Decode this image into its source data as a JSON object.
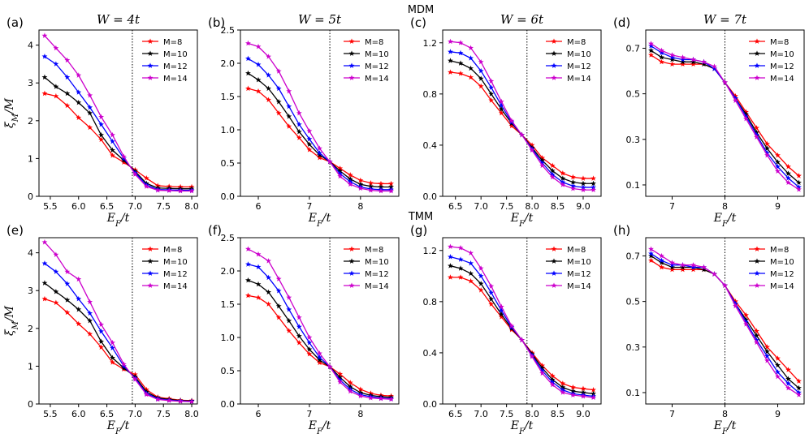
{
  "row_labels": [
    "MDM",
    "TMM"
  ],
  "colors": {
    "M=8": "#ff0000",
    "M=10": "#000000",
    "M=12": "#0000ff",
    "M=14": "#cc00cc"
  },
  "chart_data": [
    {
      "type": "line",
      "panel": "(a)",
      "row": "MDM",
      "title": "W = 4t",
      "xlabel": "E_F/t",
      "ylabel": "ξ_M/M",
      "xlim": [
        5.3,
        8.1
      ],
      "ylim": [
        0,
        4.4
      ],
      "xticks": [
        "5.5",
        "6.0",
        "6.5",
        "7.0",
        "7.5",
        "8.0"
      ],
      "yticks": [
        "0",
        "1",
        "2",
        "3",
        "4"
      ],
      "vline": 6.95,
      "legend": [
        "M=8",
        "M=10",
        "M=12",
        "M=14"
      ],
      "x": [
        5.4,
        5.6,
        5.8,
        6.0,
        6.2,
        6.4,
        6.6,
        6.8,
        7.0,
        7.2,
        7.4,
        7.6,
        7.8,
        8.0
      ],
      "series": [
        {
          "name": "M=8",
          "values": [
            2.72,
            2.65,
            2.4,
            2.08,
            1.82,
            1.5,
            1.08,
            0.9,
            0.7,
            0.48,
            0.28,
            0.26,
            0.25,
            0.25
          ]
        },
        {
          "name": "M=10",
          "values": [
            3.15,
            2.9,
            2.72,
            2.48,
            2.2,
            1.62,
            1.22,
            0.95,
            0.66,
            0.34,
            0.22,
            0.21,
            0.2,
            0.2
          ]
        },
        {
          "name": "M=12",
          "values": [
            3.7,
            3.5,
            3.15,
            2.75,
            2.35,
            1.9,
            1.45,
            1.0,
            0.62,
            0.3,
            0.18,
            0.17,
            0.16,
            0.16
          ]
        },
        {
          "name": "M=14",
          "values": [
            4.25,
            3.92,
            3.6,
            3.2,
            2.67,
            2.1,
            1.62,
            1.05,
            0.58,
            0.26,
            0.16,
            0.15,
            0.14,
            0.14
          ]
        }
      ]
    },
    {
      "type": "line",
      "panel": "(b)",
      "row": "MDM",
      "title": "W = 5t",
      "xlabel": "E_F/t",
      "ylabel": "",
      "xlim": [
        5.65,
        8.75
      ],
      "ylim": [
        0,
        2.5
      ],
      "xticks": [
        "6",
        "7",
        "8"
      ],
      "yticks": [
        "0.0",
        "0.5",
        "1.0",
        "1.5",
        "2.0",
        "2.5"
      ],
      "vline": 7.4,
      "legend": [
        "M=8",
        "M=10",
        "M=12",
        "M=14"
      ],
      "x": [
        5.8,
        6.0,
        6.2,
        6.4,
        6.6,
        6.8,
        7.0,
        7.2,
        7.4,
        7.6,
        7.8,
        8.0,
        8.2,
        8.4,
        8.6
      ],
      "series": [
        {
          "name": "M=8",
          "values": [
            1.62,
            1.58,
            1.45,
            1.25,
            1.05,
            0.88,
            0.7,
            0.58,
            0.52,
            0.42,
            0.32,
            0.24,
            0.2,
            0.19,
            0.19
          ]
        },
        {
          "name": "M=10",
          "values": [
            1.85,
            1.75,
            1.62,
            1.42,
            1.2,
            0.97,
            0.78,
            0.62,
            0.52,
            0.38,
            0.26,
            0.18,
            0.15,
            0.14,
            0.14
          ]
        },
        {
          "name": "M=12",
          "values": [
            2.07,
            1.98,
            1.82,
            1.62,
            1.35,
            1.08,
            0.86,
            0.65,
            0.52,
            0.34,
            0.22,
            0.14,
            0.11,
            0.1,
            0.1
          ]
        },
        {
          "name": "M=14",
          "values": [
            2.3,
            2.25,
            2.1,
            1.88,
            1.58,
            1.25,
            0.98,
            0.72,
            0.52,
            0.3,
            0.18,
            0.12,
            0.09,
            0.08,
            0.08
          ]
        }
      ]
    },
    {
      "type": "line",
      "panel": "(c)",
      "row": "MDM",
      "title": "W = 6t",
      "xlabel": "E_F/t",
      "ylabel": "",
      "xlim": [
        6.25,
        9.35
      ],
      "ylim": [
        0,
        1.3
      ],
      "xticks": [
        "6.5",
        "7.0",
        "7.5",
        "8.0",
        "8.5",
        "9.0"
      ],
      "yticks": [
        "0.0",
        "0.4",
        "0.8",
        "1.2"
      ],
      "vline": 7.9,
      "legend": [
        "M=8",
        "M=10",
        "M=12",
        "M=14"
      ],
      "x": [
        6.4,
        6.6,
        6.8,
        7.0,
        7.2,
        7.4,
        7.6,
        7.8,
        8.0,
        8.2,
        8.4,
        8.6,
        8.8,
        9.0,
        9.2
      ],
      "series": [
        {
          "name": "M=8",
          "values": [
            0.97,
            0.96,
            0.93,
            0.86,
            0.75,
            0.65,
            0.55,
            0.48,
            0.4,
            0.3,
            0.24,
            0.18,
            0.15,
            0.14,
            0.14
          ]
        },
        {
          "name": "M=10",
          "values": [
            1.06,
            1.04,
            1.0,
            0.92,
            0.8,
            0.68,
            0.57,
            0.48,
            0.38,
            0.28,
            0.2,
            0.14,
            0.11,
            0.1,
            0.1
          ]
        },
        {
          "name": "M=12",
          "values": [
            1.13,
            1.12,
            1.08,
            0.98,
            0.85,
            0.71,
            0.58,
            0.48,
            0.37,
            0.26,
            0.17,
            0.11,
            0.08,
            0.07,
            0.07
          ]
        },
        {
          "name": "M=14",
          "values": [
            1.21,
            1.2,
            1.16,
            1.05,
            0.9,
            0.74,
            0.59,
            0.48,
            0.36,
            0.24,
            0.15,
            0.09,
            0.06,
            0.05,
            0.05
          ]
        }
      ]
    },
    {
      "type": "line",
      "panel": "(d)",
      "row": "MDM",
      "title": "W = 7t",
      "xlabel": "E_F/t",
      "ylabel": "",
      "xlim": [
        6.5,
        9.5
      ],
      "ylim": [
        0.05,
        0.78
      ],
      "xticks": [
        "7",
        "8",
        "9"
      ],
      "yticks": [
        "0.1",
        "0.3",
        "0.5",
        "0.7"
      ],
      "vline": 8.0,
      "legend": [
        "M=8",
        "M=10",
        "M=12",
        "M=14"
      ],
      "x": [
        6.6,
        6.8,
        7.0,
        7.2,
        7.4,
        7.6,
        7.8,
        8.0,
        8.2,
        8.4,
        8.6,
        8.8,
        9.0,
        9.2,
        9.4
      ],
      "series": [
        {
          "name": "M=8",
          "values": [
            0.67,
            0.64,
            0.63,
            0.63,
            0.63,
            0.63,
            0.61,
            0.55,
            0.49,
            0.42,
            0.35,
            0.28,
            0.23,
            0.18,
            0.14
          ]
        },
        {
          "name": "M=10",
          "values": [
            0.69,
            0.66,
            0.65,
            0.64,
            0.64,
            0.63,
            0.61,
            0.55,
            0.48,
            0.41,
            0.33,
            0.26,
            0.2,
            0.15,
            0.11
          ]
        },
        {
          "name": "M=12",
          "values": [
            0.71,
            0.68,
            0.66,
            0.65,
            0.65,
            0.64,
            0.61,
            0.55,
            0.48,
            0.4,
            0.32,
            0.24,
            0.18,
            0.13,
            0.09
          ]
        },
        {
          "name": "M=14",
          "values": [
            0.72,
            0.69,
            0.67,
            0.66,
            0.65,
            0.64,
            0.62,
            0.55,
            0.47,
            0.39,
            0.31,
            0.23,
            0.16,
            0.11,
            0.08
          ]
        }
      ]
    },
    {
      "type": "line",
      "panel": "(e)",
      "row": "TMM",
      "title": "",
      "xlabel": "E_F/t",
      "ylabel": "ξ_M/M",
      "xlim": [
        5.3,
        8.1
      ],
      "ylim": [
        0,
        4.4
      ],
      "xticks": [
        "5.5",
        "6.0",
        "6.5",
        "7.0",
        "7.5",
        "8.0"
      ],
      "yticks": [
        "0",
        "1",
        "2",
        "3",
        "4"
      ],
      "vline": 6.95,
      "legend": [
        "M=8",
        "M=10",
        "M=12",
        "M=14"
      ],
      "x": [
        5.4,
        5.6,
        5.8,
        6.0,
        6.2,
        6.4,
        6.6,
        6.8,
        7.0,
        7.2,
        7.4,
        7.6,
        7.8,
        8.0
      ],
      "series": [
        {
          "name": "M=8",
          "values": [
            2.78,
            2.68,
            2.42,
            2.12,
            1.85,
            1.5,
            1.1,
            0.92,
            0.78,
            0.38,
            0.18,
            0.14,
            0.1,
            0.09
          ]
        },
        {
          "name": "M=10",
          "values": [
            3.2,
            2.97,
            2.75,
            2.5,
            2.2,
            1.65,
            1.22,
            0.95,
            0.72,
            0.32,
            0.16,
            0.12,
            0.09,
            0.08
          ]
        },
        {
          "name": "M=12",
          "values": [
            3.72,
            3.5,
            3.18,
            2.78,
            2.4,
            1.92,
            1.48,
            1.0,
            0.68,
            0.28,
            0.14,
            0.1,
            0.08,
            0.07
          ]
        },
        {
          "name": "M=14",
          "values": [
            4.28,
            3.95,
            3.5,
            3.3,
            2.7,
            2.1,
            1.62,
            1.05,
            0.65,
            0.25,
            0.12,
            0.09,
            0.07,
            0.06
          ]
        }
      ]
    },
    {
      "type": "line",
      "panel": "(f)",
      "row": "TMM",
      "title": "",
      "xlabel": "E_F/t",
      "ylabel": "",
      "xlim": [
        5.65,
        8.75
      ],
      "ylim": [
        0,
        2.5
      ],
      "xticks": [
        "6",
        "7",
        "8"
      ],
      "yticks": [
        "0.0",
        "0.5",
        "1.0",
        "1.5",
        "2.0",
        "2.5"
      ],
      "vline": 7.4,
      "legend": [
        "M=8",
        "M=10",
        "M=12",
        "M=14"
      ],
      "x": [
        5.8,
        6.0,
        6.2,
        6.4,
        6.6,
        6.8,
        7.0,
        7.2,
        7.4,
        7.6,
        7.8,
        8.0,
        8.2,
        8.4,
        8.6
      ],
      "series": [
        {
          "name": "M=8",
          "values": [
            1.63,
            1.6,
            1.5,
            1.3,
            1.1,
            0.92,
            0.75,
            0.62,
            0.56,
            0.45,
            0.32,
            0.22,
            0.16,
            0.13,
            0.12
          ]
        },
        {
          "name": "M=10",
          "values": [
            1.86,
            1.8,
            1.68,
            1.47,
            1.25,
            1.02,
            0.82,
            0.66,
            0.56,
            0.4,
            0.26,
            0.17,
            0.13,
            0.11,
            0.1
          ]
        },
        {
          "name": "M=12",
          "values": [
            2.1,
            2.06,
            1.9,
            1.7,
            1.42,
            1.16,
            0.92,
            0.7,
            0.56,
            0.36,
            0.22,
            0.14,
            0.11,
            0.09,
            0.08
          ]
        },
        {
          "name": "M=14",
          "values": [
            2.33,
            2.25,
            2.15,
            1.88,
            1.6,
            1.3,
            1.0,
            0.76,
            0.56,
            0.33,
            0.19,
            0.12,
            0.09,
            0.08,
            0.07
          ]
        }
      ]
    },
    {
      "type": "line",
      "panel": "(g)",
      "row": "TMM",
      "title": "",
      "xlabel": "E_F/t",
      "ylabel": "",
      "xlim": [
        6.25,
        9.35
      ],
      "ylim": [
        0,
        1.3
      ],
      "xticks": [
        "6.5",
        "7.0",
        "7.5",
        "8.0",
        "8.5",
        "9.0"
      ],
      "yticks": [
        "0.0",
        "0.4",
        "0.8",
        "1.2"
      ],
      "vline": 7.9,
      "legend": [
        "M=8",
        "M=10",
        "M=12",
        "M=14"
      ],
      "x": [
        6.4,
        6.6,
        6.8,
        7.0,
        7.2,
        7.4,
        7.6,
        7.8,
        8.0,
        8.2,
        8.4,
        8.6,
        8.8,
        9.0,
        9.2
      ],
      "series": [
        {
          "name": "M=8",
          "values": [
            0.99,
            0.99,
            0.96,
            0.89,
            0.78,
            0.68,
            0.58,
            0.5,
            0.4,
            0.3,
            0.22,
            0.16,
            0.13,
            0.12,
            0.11
          ]
        },
        {
          "name": "M=10",
          "values": [
            1.08,
            1.06,
            1.02,
            0.94,
            0.82,
            0.7,
            0.59,
            0.5,
            0.39,
            0.28,
            0.19,
            0.13,
            0.1,
            0.09,
            0.08
          ]
        },
        {
          "name": "M=12",
          "values": [
            1.15,
            1.13,
            1.1,
            1.0,
            0.87,
            0.73,
            0.6,
            0.5,
            0.38,
            0.26,
            0.17,
            0.11,
            0.08,
            0.07,
            0.06
          ]
        },
        {
          "name": "M=14",
          "values": [
            1.23,
            1.22,
            1.18,
            1.06,
            0.92,
            0.76,
            0.61,
            0.5,
            0.37,
            0.24,
            0.15,
            0.09,
            0.07,
            0.06,
            0.05
          ]
        }
      ]
    },
    {
      "type": "line",
      "panel": "(h)",
      "row": "TMM",
      "title": "",
      "xlabel": "E_F/t",
      "ylabel": "",
      "xlim": [
        6.5,
        9.5
      ],
      "ylim": [
        0.05,
        0.78
      ],
      "xticks": [
        "7",
        "8",
        "9"
      ],
      "yticks": [
        "0.1",
        "0.3",
        "0.5",
        "0.7"
      ],
      "vline": 8.0,
      "legend": [
        "M=8",
        "M=10",
        "M=12",
        "M=14"
      ],
      "x": [
        6.6,
        6.8,
        7.0,
        7.2,
        7.4,
        7.6,
        7.8,
        8.0,
        8.2,
        8.4,
        8.6,
        8.8,
        9.0,
        9.2,
        9.4
      ],
      "series": [
        {
          "name": "M=8",
          "values": [
            0.68,
            0.65,
            0.64,
            0.64,
            0.64,
            0.64,
            0.62,
            0.57,
            0.5,
            0.44,
            0.37,
            0.3,
            0.25,
            0.2,
            0.15
          ]
        },
        {
          "name": "M=10",
          "values": [
            0.7,
            0.67,
            0.65,
            0.65,
            0.65,
            0.64,
            0.62,
            0.57,
            0.49,
            0.42,
            0.35,
            0.28,
            0.22,
            0.16,
            0.12
          ]
        },
        {
          "name": "M=12",
          "values": [
            0.71,
            0.68,
            0.66,
            0.66,
            0.65,
            0.65,
            0.62,
            0.57,
            0.49,
            0.41,
            0.33,
            0.26,
            0.19,
            0.14,
            0.1
          ]
        },
        {
          "name": "M=14",
          "values": [
            0.73,
            0.7,
            0.67,
            0.66,
            0.66,
            0.65,
            0.62,
            0.57,
            0.48,
            0.4,
            0.32,
            0.24,
            0.17,
            0.12,
            0.09
          ]
        }
      ]
    }
  ]
}
